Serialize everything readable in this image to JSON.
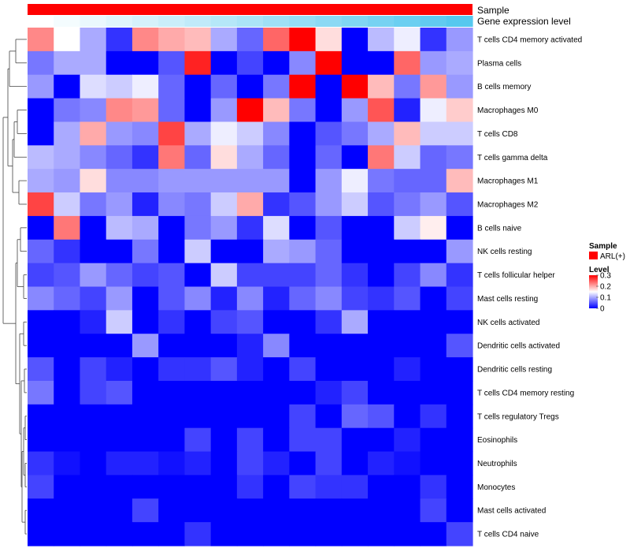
{
  "chart_data": {
    "type": "heatmap",
    "title": "",
    "annotations": [
      {
        "label": "Sample",
        "kind": "constant",
        "color": "#ff0000"
      },
      {
        "label": "Gene expression level",
        "kind": "gradient",
        "colors": [
          "#ffffff",
          "#56c8ef"
        ]
      }
    ],
    "legend": {
      "sample_title": "Sample",
      "sample_entries": [
        {
          "label": "ARL(+)",
          "color": "#ff0000"
        }
      ],
      "level_title": "Level",
      "level_ticks": [
        "0.3",
        "0.2",
        "0.1",
        "0"
      ],
      "level_colors": [
        "#0000ff",
        "#ffffff",
        "#ff0000"
      ],
      "placement": "right"
    },
    "color_scale": {
      "min": 0,
      "mid": 0.15,
      "max": 0.3,
      "low": "#0000ff",
      "mid_color": "#ffffff",
      "high": "#ff0000"
    },
    "row_labels": [
      "T cells CD4 memory activated",
      "Plasma cells",
      "B cells memory",
      "Macrophages M0",
      "T cells CD8",
      "T cells gamma delta",
      "Macrophages M1",
      "Macrophages M2",
      "B cells naive",
      "NK cells resting",
      "T cells follicular helper",
      "Mast cells resting",
      "NK cells activated",
      "Dendritic cells activated",
      "Dendritic cells resting",
      "T cells CD4 memory resting",
      "T cells regulatory  Tregs",
      "Eosinophils",
      "Neutrophils",
      "Monocytes",
      "Mast cells activated",
      "T cells CD4 naive"
    ],
    "values": [
      [
        0.22,
        0.15,
        0.1,
        0.03,
        0.22,
        0.2,
        0.19,
        0.1,
        0.06,
        0.24,
        0.3,
        0.17,
        0.0,
        0.11,
        0.14,
        0.03,
        0.09
      ],
      [
        0.07,
        0.1,
        0.1,
        0.0,
        0.0,
        0.05,
        0.28,
        0.0,
        0.04,
        0.0,
        0.08,
        0.3,
        0.0,
        0.0,
        0.24,
        0.09,
        0.1
      ],
      [
        0.09,
        0.0,
        0.13,
        0.12,
        0.14,
        0.06,
        0.0,
        0.06,
        0.0,
        0.07,
        0.3,
        0.0,
        0.3,
        0.19,
        0.07,
        0.21,
        0.09
      ],
      [
        0.0,
        0.07,
        0.08,
        0.22,
        0.21,
        0.06,
        0.0,
        0.09,
        0.3,
        0.19,
        0.07,
        0.0,
        0.09,
        0.25,
        0.02,
        0.14,
        0.18
      ],
      [
        0.0,
        0.1,
        0.2,
        0.09,
        0.08,
        0.26,
        0.1,
        0.14,
        0.12,
        0.08,
        0.0,
        0.05,
        0.07,
        0.1,
        0.19,
        0.12,
        0.12
      ],
      [
        0.11,
        0.1,
        0.08,
        0.06,
        0.03,
        0.23,
        0.06,
        0.17,
        0.1,
        0.06,
        0.0,
        0.06,
        0.0,
        0.23,
        0.12,
        0.06,
        0.07
      ],
      [
        0.1,
        0.09,
        0.17,
        0.08,
        0.08,
        0.09,
        0.09,
        0.09,
        0.09,
        0.09,
        0.0,
        0.09,
        0.14,
        0.07,
        0.06,
        0.06,
        0.19
      ],
      [
        0.26,
        0.12,
        0.07,
        0.09,
        0.02,
        0.08,
        0.07,
        0.12,
        0.2,
        0.03,
        0.05,
        0.09,
        0.12,
        0.05,
        0.07,
        0.09,
        0.05
      ],
      [
        0.0,
        0.23,
        0.0,
        0.11,
        0.1,
        0.0,
        0.07,
        0.09,
        0.03,
        0.13,
        0.0,
        0.05,
        0.0,
        0.0,
        0.12,
        0.16,
        0.0
      ],
      [
        0.06,
        0.03,
        0.0,
        0.0,
        0.07,
        0.0,
        0.12,
        0.0,
        0.0,
        0.1,
        0.09,
        0.06,
        0.0,
        0.0,
        0.0,
        0.0,
        0.09
      ],
      [
        0.04,
        0.05,
        0.09,
        0.06,
        0.04,
        0.05,
        0.0,
        0.12,
        0.04,
        0.04,
        0.04,
        0.06,
        0.03,
        0.0,
        0.04,
        0.08,
        0.03
      ],
      [
        0.08,
        0.06,
        0.04,
        0.09,
        0.0,
        0.05,
        0.08,
        0.02,
        0.08,
        0.02,
        0.06,
        0.08,
        0.04,
        0.03,
        0.05,
        0.0,
        0.04
      ],
      [
        0.0,
        0.0,
        0.02,
        0.12,
        0.0,
        0.03,
        0.0,
        0.04,
        0.05,
        0.0,
        0.0,
        0.03,
        0.1,
        0.0,
        0.0,
        0.0,
        0.0
      ],
      [
        0.0,
        0.0,
        0.0,
        0.0,
        0.09,
        0.0,
        0.0,
        0.0,
        0.02,
        0.08,
        0.0,
        0.0,
        0.0,
        0.0,
        0.0,
        0.0,
        0.05
      ],
      [
        0.05,
        0.0,
        0.04,
        0.02,
        0.0,
        0.03,
        0.03,
        0.05,
        0.02,
        0.0,
        0.04,
        0.0,
        0.0,
        0.0,
        0.02,
        0.0,
        0.0
      ],
      [
        0.07,
        0.0,
        0.04,
        0.05,
        0.0,
        0.0,
        0.0,
        0.0,
        0.0,
        0.0,
        0.0,
        0.02,
        0.04,
        0.0,
        0.0,
        0.0,
        0.0
      ],
      [
        0.0,
        0.0,
        0.0,
        0.0,
        0.0,
        0.0,
        0.0,
        0.0,
        0.0,
        0.0,
        0.04,
        0.0,
        0.06,
        0.05,
        0.0,
        0.03,
        0.0
      ],
      [
        0.0,
        0.0,
        0.0,
        0.0,
        0.0,
        0.0,
        0.04,
        0.0,
        0.04,
        0.0,
        0.04,
        0.04,
        0.0,
        0.0,
        0.02,
        0.0,
        0.0
      ],
      [
        0.03,
        0.01,
        0.0,
        0.02,
        0.02,
        0.01,
        0.02,
        0.0,
        0.04,
        0.02,
        0.0,
        0.04,
        0.0,
        0.02,
        0.01,
        0.0,
        0.0
      ],
      [
        0.04,
        0.0,
        0.0,
        0.0,
        0.0,
        0.0,
        0.0,
        0.0,
        0.03,
        0.0,
        0.04,
        0.03,
        0.03,
        0.0,
        0.0,
        0.03,
        0.0
      ],
      [
        0.0,
        0.0,
        0.0,
        0.0,
        0.04,
        0.0,
        0.0,
        0.0,
        0.0,
        0.0,
        0.0,
        0.0,
        0.0,
        0.0,
        0.0,
        0.04,
        0.0
      ],
      [
        0.0,
        0.0,
        0.0,
        0.0,
        0.0,
        0.0,
        0.03,
        0.0,
        0.0,
        0.0,
        0.0,
        0.0,
        0.0,
        0.0,
        0.0,
        0.0,
        0.04
      ]
    ]
  }
}
